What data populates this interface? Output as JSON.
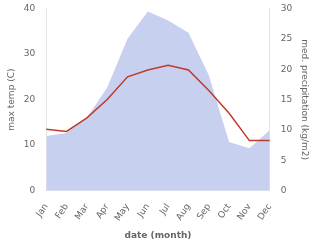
{
  "chart_data": {
    "type": "line",
    "xlabel": "date (month)",
    "ylabel": "max temp (C)",
    "y2label": "med. precipitation (kg/m2)",
    "categories": [
      "Jan",
      "Feb",
      "Mar",
      "Apr",
      "May",
      "Jun",
      "Jul",
      "Aug",
      "Sep",
      "Oct",
      "Nov",
      "Dec"
    ],
    "series": [
      {
        "type": "area",
        "axis": "y2",
        "color": "#c8d0f0",
        "values": [
          9.0,
          9.5,
          12.0,
          17.0,
          25.0,
          29.5,
          28.0,
          26.0,
          19.0,
          8.0,
          7.0,
          10.0
        ]
      },
      {
        "type": "line",
        "color": "#c0392b",
        "values": [
          13.5,
          13.0,
          16.0,
          20.0,
          25.0,
          26.5,
          27.5,
          26.5,
          22.0,
          17.0,
          11.0,
          11.0
        ]
      }
    ],
    "ylim": [
      0,
      40
    ],
    "yticks": [
      0,
      10,
      20,
      30,
      40
    ],
    "y2lim": [
      0,
      30
    ],
    "y2ticks": [
      0,
      5,
      10,
      15,
      20,
      25,
      30
    ],
    "grid": false
  }
}
